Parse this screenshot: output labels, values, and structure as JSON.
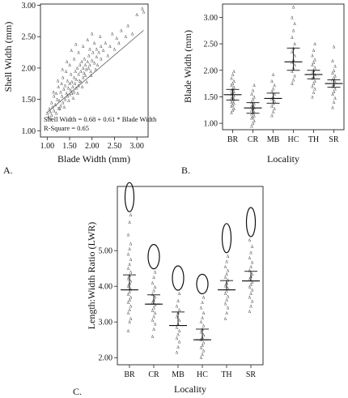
{
  "panel_labels": {
    "a": "A.",
    "b": "B.",
    "c": "C."
  },
  "annotation_a": {
    "equation": "Shell Width = 0.68 + 0.61 * Blade Width",
    "r_square": "R-Square = 0.65"
  },
  "chart_data": [
    {
      "id": "A",
      "type": "scatter",
      "title": "",
      "xlabel": "Blade Width (mm)",
      "ylabel": "Shell Width (mm)",
      "xlim": [
        0.85,
        3.25
      ],
      "ylim": [
        0.9,
        3.02
      ],
      "xticks": [
        "1.00",
        "1.50",
        "2.00",
        "2.50",
        "3.00"
      ],
      "yticks": [
        "1.00",
        "1.50",
        "2.00",
        "2.50",
        "3.00"
      ],
      "marker": "^",
      "regression": {
        "intercept": 0.68,
        "slope": 0.61,
        "x_range": [
          1.0,
          3.15
        ]
      },
      "points": [
        [
          1.0,
          1.28
        ],
        [
          1.03,
          1.22
        ],
        [
          1.05,
          1.35
        ],
        [
          1.07,
          1.3
        ],
        [
          1.1,
          1.25
        ],
        [
          1.1,
          1.45
        ],
        [
          1.12,
          1.38
        ],
        [
          1.15,
          1.32
        ],
        [
          1.15,
          1.55
        ],
        [
          1.18,
          1.42
        ],
        [
          1.2,
          1.28
        ],
        [
          1.2,
          1.6
        ],
        [
          1.22,
          1.5
        ],
        [
          1.25,
          1.36
        ],
        [
          1.25,
          1.7
        ],
        [
          1.27,
          1.48
        ],
        [
          1.3,
          1.4
        ],
        [
          1.3,
          1.62
        ],
        [
          1.32,
          1.75
        ],
        [
          1.33,
          1.55
        ],
        [
          1.35,
          1.45
        ],
        [
          1.35,
          1.85
        ],
        [
          1.37,
          1.66
        ],
        [
          1.4,
          1.5
        ],
        [
          1.4,
          1.72
        ],
        [
          1.42,
          1.95
        ],
        [
          1.43,
          1.6
        ],
        [
          1.45,
          1.55
        ],
        [
          1.45,
          1.8
        ],
        [
          1.47,
          1.68
        ],
        [
          1.5,
          1.58
        ],
        [
          1.5,
          1.75
        ],
        [
          1.5,
          2.05
        ],
        [
          1.52,
          1.65
        ],
        [
          1.53,
          1.9
        ],
        [
          1.55,
          1.6
        ],
        [
          1.55,
          1.78
        ],
        [
          1.57,
          1.7
        ],
        [
          1.6,
          1.62
        ],
        [
          1.6,
          1.85
        ],
        [
          1.6,
          2.15
        ],
        [
          1.62,
          1.75
        ],
        [
          1.63,
          1.95
        ],
        [
          1.65,
          1.68
        ],
        [
          1.65,
          1.82
        ],
        [
          1.67,
          2.0
        ],
        [
          1.7,
          1.72
        ],
        [
          1.7,
          1.9
        ],
        [
          1.7,
          2.25
        ],
        [
          1.72,
          1.8
        ],
        [
          1.73,
          2.05
        ],
        [
          1.75,
          1.78
        ],
        [
          1.75,
          1.95
        ],
        [
          1.77,
          2.1
        ],
        [
          1.8,
          1.85
        ],
        [
          1.8,
          2.0
        ],
        [
          1.8,
          2.35
        ],
        [
          1.82,
          1.92
        ],
        [
          1.83,
          2.15
        ],
        [
          1.85,
          1.88
        ],
        [
          1.85,
          2.05
        ],
        [
          1.87,
          1.98
        ],
        [
          1.9,
          2.1
        ],
        [
          1.9,
          2.45
        ],
        [
          1.92,
          2.0
        ],
        [
          1.93,
          2.2
        ],
        [
          1.95,
          2.05
        ],
        [
          1.95,
          2.3
        ],
        [
          1.97,
          1.95
        ],
        [
          2.0,
          2.12
        ],
        [
          2.0,
          2.55
        ],
        [
          2.02,
          2.25
        ],
        [
          2.05,
          2.08
        ],
        [
          2.05,
          2.4
        ],
        [
          2.1,
          2.18
        ],
        [
          2.1,
          2.3
        ],
        [
          2.12,
          2.05
        ],
        [
          2.15,
          2.25
        ],
        [
          2.2,
          2.35
        ],
        [
          2.2,
          2.15
        ],
        [
          2.25,
          2.28
        ],
        [
          2.3,
          2.4
        ],
        [
          2.35,
          2.2
        ],
        [
          2.4,
          2.35
        ],
        [
          2.45,
          2.55
        ],
        [
          2.5,
          2.3
        ],
        [
          2.55,
          2.48
        ],
        [
          2.6,
          2.4
        ],
        [
          2.65,
          2.6
        ],
        [
          2.75,
          2.5
        ],
        [
          2.8,
          2.68
        ],
        [
          2.9,
          2.55
        ],
        [
          3.0,
          2.85
        ],
        [
          3.12,
          2.95
        ],
        [
          3.15,
          2.9
        ],
        [
          1.08,
          1.2
        ],
        [
          1.28,
          1.35
        ],
        [
          1.38,
          1.38
        ],
        [
          1.48,
          1.48
        ],
        [
          1.58,
          1.52
        ],
        [
          1.68,
          1.6
        ],
        [
          1.78,
          1.7
        ],
        [
          1.88,
          1.78
        ],
        [
          1.98,
          1.88
        ],
        [
          1.14,
          1.62
        ],
        [
          1.24,
          1.8
        ],
        [
          1.34,
          1.98
        ],
        [
          1.44,
          2.1
        ],
        [
          1.54,
          2.28
        ],
        [
          1.64,
          2.38
        ],
        [
          2.08,
          1.98
        ],
        [
          2.18,
          2.5
        ]
      ]
    },
    {
      "id": "B",
      "type": "scatter",
      "title": "",
      "xlabel": "Locality",
      "ylabel": "Blade Width (mm)",
      "categories": [
        "BR",
        "CR",
        "MB",
        "HC",
        "TH",
        "SR"
      ],
      "ylim": [
        0.88,
        3.25
      ],
      "yticks": [
        "1.00",
        "1.50",
        "2.00",
        "2.50",
        "3.00"
      ],
      "marker": "^",
      "mean": [
        1.54,
        1.29,
        1.47,
        2.16,
        1.92,
        1.75
      ],
      "ci_low": [
        1.44,
        1.19,
        1.38,
        2.0,
        1.84,
        1.68
      ],
      "ci_high": [
        1.64,
        1.39,
        1.57,
        2.42,
        2.0,
        1.82
      ],
      "points": {
        "BR": [
          1.2,
          1.25,
          1.28,
          1.32,
          1.35,
          1.38,
          1.4,
          1.42,
          1.45,
          1.48,
          1.5,
          1.52,
          1.55,
          1.58,
          1.6,
          1.62,
          1.65,
          1.68,
          1.72,
          1.75,
          1.8,
          1.85,
          1.92,
          1.98
        ],
        "CR": [
          0.95,
          1.0,
          1.05,
          1.1,
          1.12,
          1.15,
          1.18,
          1.2,
          1.22,
          1.25,
          1.28,
          1.3,
          1.32,
          1.35,
          1.38,
          1.4,
          1.45,
          1.5,
          1.55,
          1.62,
          1.72
        ],
        "MB": [
          1.15,
          1.22,
          1.28,
          1.32,
          1.38,
          1.42,
          1.46,
          1.5,
          1.55,
          1.6,
          1.65,
          1.72,
          1.8,
          1.92
        ],
        "HC": [
          1.75,
          1.82,
          1.9,
          1.98,
          2.05,
          2.1,
          2.15,
          2.2,
          2.28,
          2.35,
          2.42,
          2.5,
          2.62,
          2.75,
          2.88,
          3.0,
          3.2
        ],
        "TH": [
          1.5,
          1.58,
          1.65,
          1.7,
          1.75,
          1.8,
          1.85,
          1.88,
          1.92,
          1.95,
          2.0,
          2.05,
          2.1,
          2.15,
          2.2,
          2.28,
          2.38,
          2.5
        ],
        "SR": [
          1.3,
          1.4,
          1.48,
          1.55,
          1.6,
          1.65,
          1.7,
          1.74,
          1.78,
          1.82,
          1.86,
          1.9,
          1.95,
          2.0,
          2.08,
          2.18,
          2.45
        ]
      }
    },
    {
      "id": "C",
      "type": "scatter",
      "title": "",
      "xlabel": "Locality",
      "ylabel": "Length:Width Ratio (LWR)",
      "categories": [
        "BR",
        "CR",
        "MB",
        "HC",
        "TH",
        "SR"
      ],
      "ylim": [
        1.8,
        6.8
      ],
      "yticks": [
        "2.00",
        "3.00",
        "4.00",
        "5.00"
      ],
      "marker": "^",
      "mean": [
        3.9,
        3.5,
        2.9,
        2.5,
        3.9,
        4.15
      ],
      "ci_low": [
        3.9,
        3.5,
        2.9,
        2.5,
        3.9,
        4.15
      ],
      "ci_high": [
        4.32,
        3.76,
        3.28,
        2.8,
        4.16,
        4.42
      ],
      "outline_icons": [
        {
          "category": "BR",
          "aspect": "elongated"
        },
        {
          "category": "CR",
          "aspect": "oval"
        },
        {
          "category": "MB",
          "aspect": "oval"
        },
        {
          "category": "HC",
          "aspect": "round"
        },
        {
          "category": "TH",
          "aspect": "elongated"
        },
        {
          "category": "SR",
          "aspect": "elongated"
        }
      ],
      "points": {
        "BR": [
          2.75,
          3.0,
          3.1,
          3.25,
          3.35,
          3.45,
          3.55,
          3.62,
          3.7,
          3.78,
          3.85,
          3.92,
          4.0,
          4.08,
          4.15,
          4.22,
          4.3,
          4.4,
          4.5,
          4.62,
          4.75,
          4.9,
          5.05,
          5.2,
          5.45,
          5.8,
          6.0
        ],
        "CR": [
          2.6,
          2.8,
          2.95,
          3.05,
          3.15,
          3.25,
          3.32,
          3.4,
          3.48,
          3.55,
          3.62,
          3.7,
          3.78,
          3.88,
          3.98,
          4.1,
          4.25,
          4.4
        ],
        "MB": [
          2.15,
          2.3,
          2.45,
          2.55,
          2.65,
          2.75,
          2.85,
          2.95,
          3.05,
          3.15,
          3.25,
          3.35,
          3.45,
          3.6,
          3.8
        ],
        "HC": [
          2.0,
          2.1,
          2.2,
          2.28,
          2.35,
          2.42,
          2.5,
          2.57,
          2.64,
          2.72,
          2.8,
          2.9,
          3.0,
          3.12,
          3.25,
          3.4,
          3.55,
          3.7
        ],
        "TH": [
          3.1,
          3.25,
          3.4,
          3.52,
          3.62,
          3.72,
          3.8,
          3.88,
          3.95,
          4.02,
          4.1,
          4.18,
          4.25,
          4.35,
          4.45,
          4.55,
          4.7,
          4.85
        ],
        "SR": [
          3.3,
          3.45,
          3.58,
          3.7,
          3.8,
          3.9,
          3.98,
          4.05,
          4.12,
          4.2,
          4.28,
          4.35,
          4.45,
          4.55,
          4.68,
          4.8,
          4.95,
          5.12,
          5.3
        ]
      }
    }
  ]
}
